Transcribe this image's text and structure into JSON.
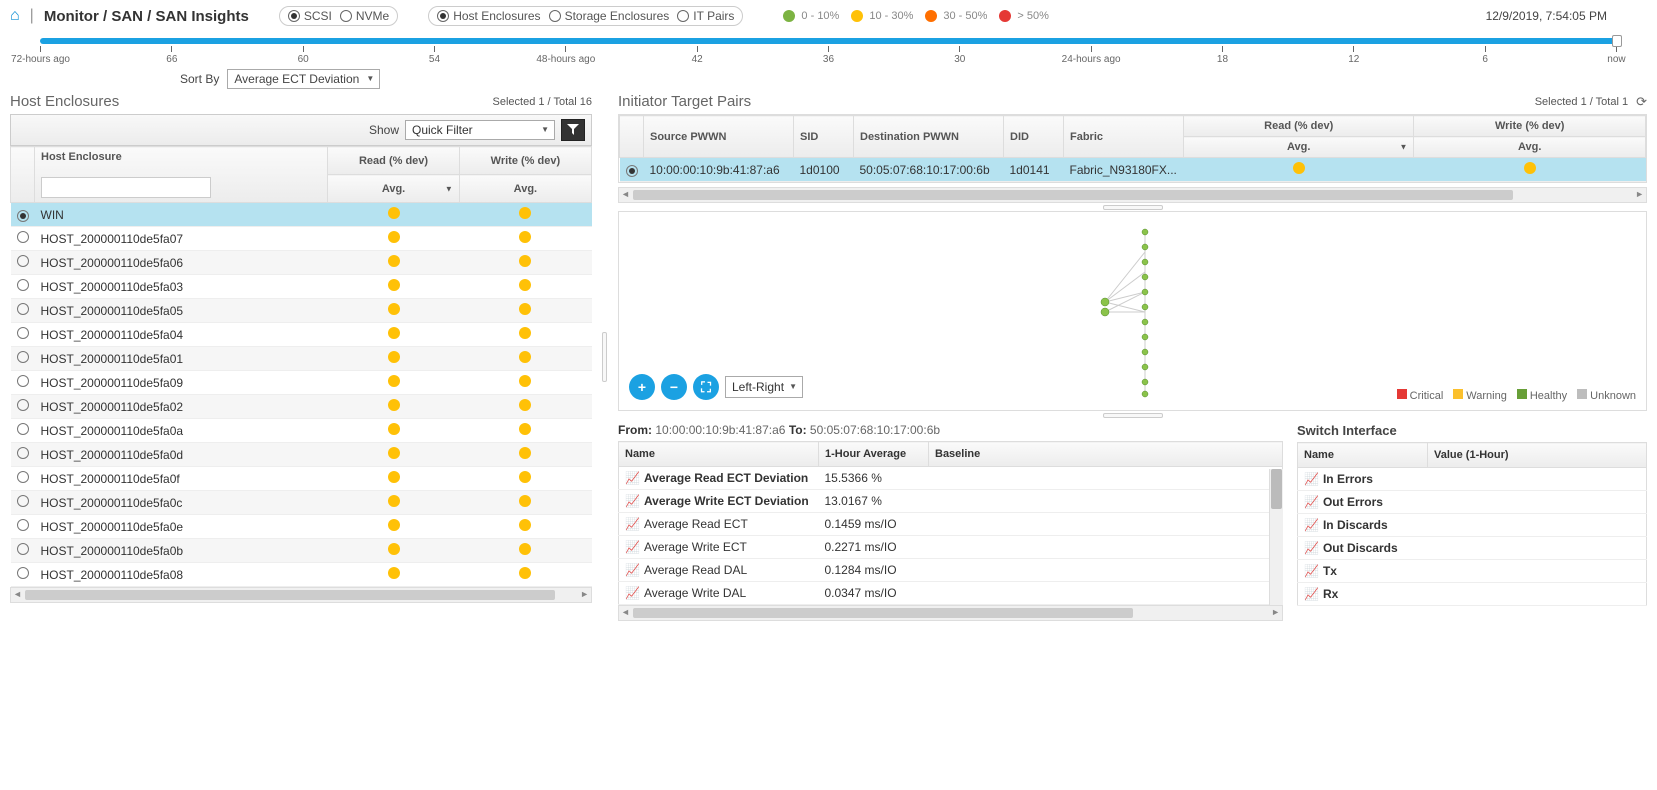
{
  "breadcrumb": "Monitor / SAN / SAN Insights",
  "protocol_radios": {
    "scsi": "SCSI",
    "nvme": "NVMe",
    "selected": "scsi"
  },
  "view_radios": {
    "host": "Host Enclosures",
    "storage": "Storage Enclosures",
    "it": "IT Pairs",
    "selected": "host"
  },
  "legend": {
    "items": [
      {
        "color": "#7cb342",
        "label": "0 - 10%"
      },
      {
        "color": "#ffc107",
        "label": "10 - 30%"
      },
      {
        "color": "#ff6f00",
        "label": "30 - 50%"
      },
      {
        "color": "#e53935",
        "label": "> 50%"
      }
    ]
  },
  "timestamp": "12/9/2019, 7:54:05 PM",
  "time_ticks": [
    "72-hours ago",
    "66",
    "60",
    "54",
    "48-hours ago",
    "42",
    "36",
    "30",
    "24-hours ago",
    "18",
    "12",
    "6",
    "now"
  ],
  "sortby_label": "Sort By",
  "sortby_value": "Average ECT Deviation",
  "host_panel": {
    "title": "Host Enclosures",
    "status": "Selected 1 / Total 16",
    "show_label": "Show",
    "filter_value": "Quick Filter",
    "columns": {
      "host": "Host Enclosure",
      "read": "Read (% dev)",
      "write": "Write (% dev)",
      "avg": "Avg."
    },
    "rows": [
      {
        "name": "WIN",
        "selected": true
      },
      {
        "name": "HOST_200000110de5fa07"
      },
      {
        "name": "HOST_200000110de5fa06"
      },
      {
        "name": "HOST_200000110de5fa03"
      },
      {
        "name": "HOST_200000110de5fa05"
      },
      {
        "name": "HOST_200000110de5fa04"
      },
      {
        "name": "HOST_200000110de5fa01"
      },
      {
        "name": "HOST_200000110de5fa09"
      },
      {
        "name": "HOST_200000110de5fa02"
      },
      {
        "name": "HOST_200000110de5fa0a"
      },
      {
        "name": "HOST_200000110de5fa0d"
      },
      {
        "name": "HOST_200000110de5fa0f"
      },
      {
        "name": "HOST_200000110de5fa0c"
      },
      {
        "name": "HOST_200000110de5fa0e"
      },
      {
        "name": "HOST_200000110de5fa0b"
      },
      {
        "name": "HOST_200000110de5fa08"
      }
    ],
    "dot_color": "#ffc107"
  },
  "itp_panel": {
    "title": "Initiator Target Pairs",
    "status": "Selected 1 / Total 1",
    "columns": {
      "src": "Source PWWN",
      "sid": "SID",
      "dst": "Destination PWWN",
      "did": "DID",
      "fabric": "Fabric",
      "read": "Read (% dev)",
      "write": "Write (% dev)",
      "avg": "Avg."
    },
    "rows": [
      {
        "src": "10:00:00:10:9b:41:87:a6",
        "sid": "1d0100",
        "dst": "50:05:07:68:10:17:00:6b",
        "did": "1d0141",
        "fabric": "Fabric_N93180FX...",
        "selected": true
      }
    ]
  },
  "topo": {
    "layout": "Left-Right",
    "legend": [
      {
        "color": "#e53935",
        "label": "Critical"
      },
      {
        "color": "#fbc02d",
        "label": "Warning"
      },
      {
        "color": "#689f38",
        "label": "Healthy"
      },
      {
        "color": "#bdbdbd",
        "label": "Unknown"
      }
    ]
  },
  "metrics": {
    "from_label": "From:",
    "from_val": "10:00:00:10:9b:41:87:a6",
    "to_label": "To:",
    "to_val": "50:05:07:68:10:17:00:6b",
    "cols": {
      "name": "Name",
      "avg": "1-Hour Average",
      "base": "Baseline"
    },
    "rows": [
      {
        "name": "Average Read ECT Deviation",
        "avg": "15.5366 %"
      },
      {
        "name": "Average Write ECT Deviation",
        "avg": "13.0167 %"
      },
      {
        "name": "Average Read ECT",
        "avg": "0.1459 ms/IO"
      },
      {
        "name": "Average Write ECT",
        "avg": "0.2271 ms/IO"
      },
      {
        "name": "Average Read DAL",
        "avg": "0.1284 ms/IO"
      },
      {
        "name": "Average Write DAL",
        "avg": "0.0347 ms/IO"
      }
    ]
  },
  "switch": {
    "title": "Switch Interface",
    "cols": {
      "name": "Name",
      "val": "Value (1-Hour)"
    },
    "rows": [
      {
        "name": "In Errors"
      },
      {
        "name": "Out Errors"
      },
      {
        "name": "In Discards"
      },
      {
        "name": "Out Discards"
      },
      {
        "name": "Tx"
      },
      {
        "name": "Rx"
      }
    ]
  }
}
